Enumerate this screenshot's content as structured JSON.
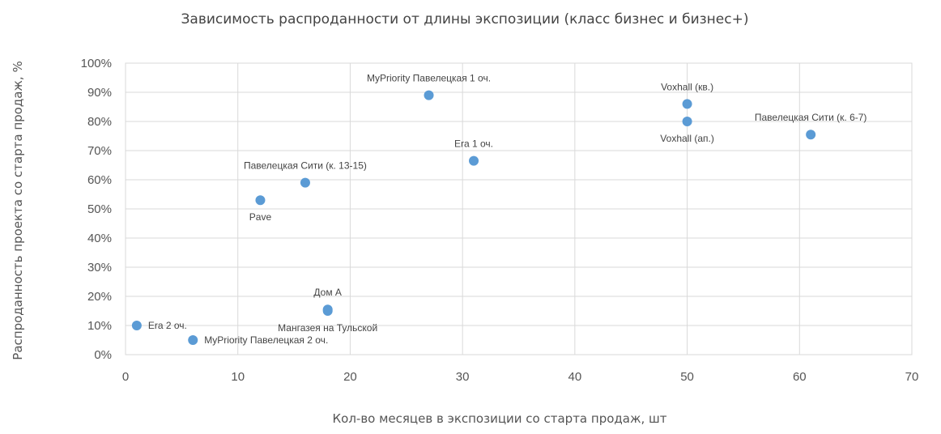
{
  "chart_data": {
    "type": "scatter",
    "title": "Зависимость  распроданности от длины экспозиции (класс бизнес и бизнес+)",
    "xlabel": "Кол-во месяцев в экспозиции со старта продаж, шт",
    "ylabel": "Распроданность проекта со старта продаж, %",
    "xlim": [
      0,
      70
    ],
    "ylim": [
      0,
      100
    ],
    "x_ticks": [
      "0",
      "10",
      "20",
      "30",
      "40",
      "50",
      "60",
      "70"
    ],
    "y_ticks": [
      "0%",
      "10%",
      "20%",
      "30%",
      "40%",
      "50%",
      "60%",
      "70%",
      "80%",
      "90%",
      "100%"
    ],
    "grid": true,
    "color": "#5b9bd5",
    "points": [
      {
        "label": "Era 2 оч.",
        "x": 1,
        "y": 10,
        "label_pos": "right"
      },
      {
        "label": "MyPriority Павелецкая 2 оч.",
        "x": 6,
        "y": 5,
        "label_pos": "right"
      },
      {
        "label": "Pave",
        "x": 12,
        "y": 53,
        "label_pos": "below"
      },
      {
        "label": "Павелецкая  Сити (к. 13-15)",
        "x": 16,
        "y": 59,
        "label_pos": "above"
      },
      {
        "label": "Дом А",
        "x": 18,
        "y": 15.5,
        "label_pos": "above"
      },
      {
        "label": "Мангазея на Тульской",
        "x": 18,
        "y": 15,
        "label_pos": "below"
      },
      {
        "label": "MyPriority Павелецкая  1 оч.",
        "x": 27,
        "y": 89,
        "label_pos": "above"
      },
      {
        "label": "Era 1 оч.",
        "x": 31,
        "y": 66.5,
        "label_pos": "above"
      },
      {
        "label": "Voxhall (кв.)",
        "x": 50,
        "y": 86,
        "label_pos": "above"
      },
      {
        "label": "Voxhall (ап.)",
        "x": 50,
        "y": 80,
        "label_pos": "below"
      },
      {
        "label": "Павелецкая  Сити (к. 6-7)",
        "x": 61,
        "y": 75.5,
        "label_pos": "above"
      }
    ]
  }
}
